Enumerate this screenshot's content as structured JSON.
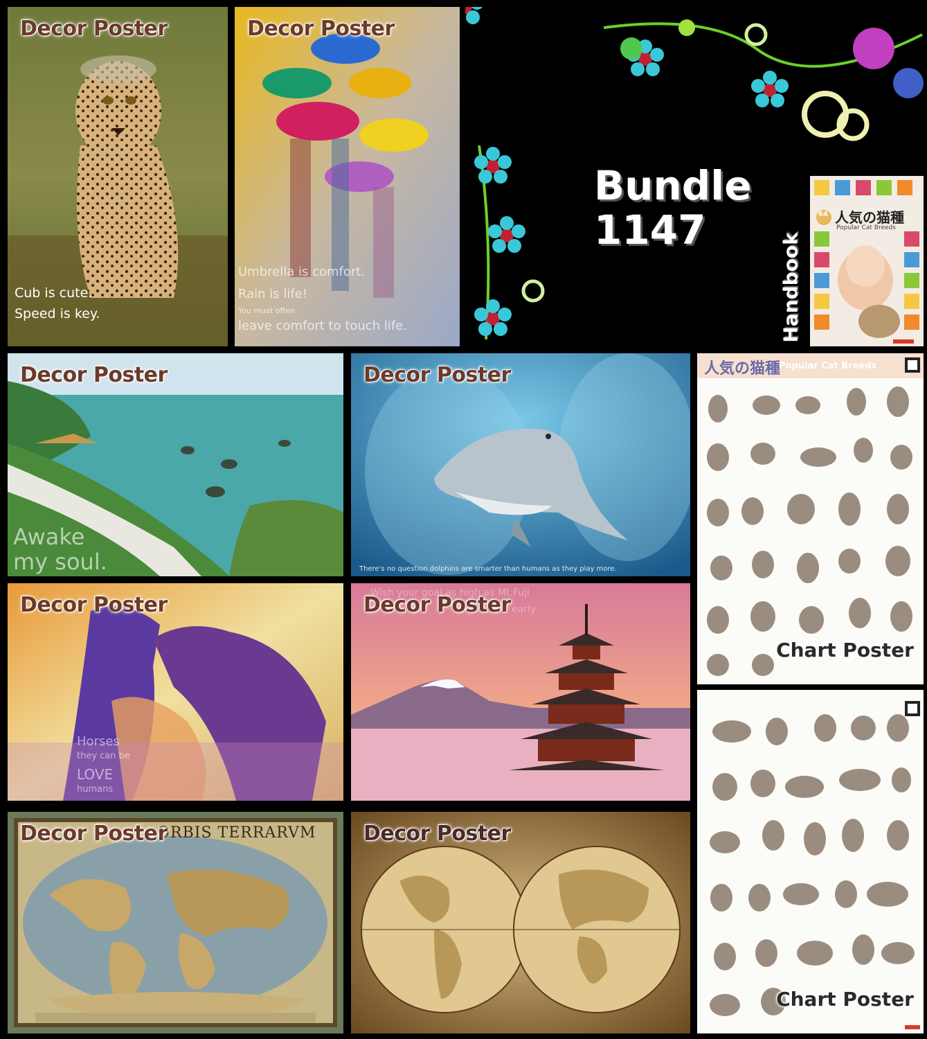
{
  "bundle": {
    "title": "Bundle",
    "number": "1147",
    "handbook_label": "Handbook"
  },
  "tiles": {
    "cheetah": {
      "tag": "Decor Poster",
      "line1": "Cub is cute.",
      "line2": "Speed is key."
    },
    "umbrellas": {
      "tag": "Decor Poster",
      "line1": "Umbrella is comfort.",
      "line2": "Rain is life!",
      "line3": "You must often",
      "line4": "leave comfort to touch life."
    },
    "coast": {
      "tag": "Decor Poster",
      "line1": "Awake",
      "line2": "my soul."
    },
    "dolphin": {
      "tag": "Decor Poster",
      "caption": "There's no question dolphins are smarter than humans as they play more."
    },
    "horses": {
      "tag": "Decor Poster",
      "line1": "Horses",
      "line2": "they can be",
      "line3": "LOVE",
      "line4": "humans"
    },
    "fuji": {
      "tag": "Decor Poster",
      "caption": "Wish your goal as high as Mt.Fuji",
      "caption2": "early"
    },
    "old_map": {
      "tag": "Decor Poster",
      "banner": "ORBIS TERRARVM"
    },
    "hemisphere_map": {
      "tag": "Decor Poster"
    }
  },
  "handbook": {
    "number": "64",
    "title_jp": "人気の猫種",
    "title_en": "Popular Cat Breeds"
  },
  "cat_chart_1": {
    "title_jp": "人気の猫種",
    "title_en": "Popular Cat Breeds",
    "tag": "Chart Poster"
  },
  "cat_chart_2": {
    "tag": "Chart Poster"
  },
  "colors": {
    "background": "#000000",
    "tag_text": "#6b3a2a",
    "white": "#ffffff"
  }
}
